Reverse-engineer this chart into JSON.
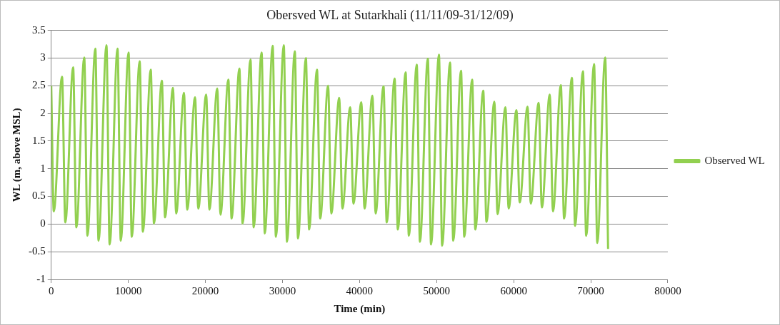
{
  "chart_data": {
    "type": "line",
    "title": "Obersved WL at Sutarkhali (11/11/09-31/12/09)",
    "xlabel": "Time (min)",
    "ylabel": "WL (m, above MSL)",
    "xlim": [
      0,
      80000
    ],
    "xticks": [
      0,
      10000,
      20000,
      30000,
      40000,
      50000,
      60000,
      70000,
      80000
    ],
    "ylim": [
      -1,
      3.5
    ],
    "yticks": [
      -1,
      -0.5,
      0,
      0.5,
      1,
      1.5,
      2,
      2.5,
      3,
      3.5
    ],
    "grid": "y",
    "legend": "right",
    "marker": "none",
    "line_style": "solid",
    "series": [
      {
        "name": "Observed WL",
        "color": "#92d050",
        "x": [
          0,
          330,
          1400,
          1830,
          2840,
          3260,
          4280,
          4700,
          5720,
          6140,
          7160,
          7580,
          8600,
          9020,
          10030,
          10450,
          11470,
          11890,
          12910,
          13330,
          14350,
          14770,
          15790,
          16210,
          17220,
          17640,
          18660,
          19080,
          20100,
          20520,
          21540,
          21960,
          22980,
          23400,
          24410,
          24830,
          25850,
          26270,
          27290,
          27710,
          28730,
          29150,
          30170,
          30590,
          31600,
          32020,
          33040,
          33460,
          34480,
          34900,
          35920,
          36340,
          37360,
          37780,
          38790,
          39210,
          40230,
          40650,
          41670,
          42090,
          43110,
          43530,
          44550,
          44970,
          45980,
          46400,
          47420,
          47840,
          48860,
          49280,
          50300,
          50720,
          51740,
          52160,
          53170,
          53590,
          54610,
          55030,
          56050,
          56470,
          57490,
          57910,
          58930,
          59350,
          60360,
          60780,
          61800,
          62220,
          63240,
          63660,
          64680,
          65100,
          66120,
          66540,
          67550,
          67970,
          68990,
          69410,
          70430,
          70850,
          71870,
          72250
        ],
        "values": [
          2.5,
          0.23,
          2.66,
          0.03,
          2.83,
          -0.06,
          3.01,
          -0.21,
          3.17,
          -0.3,
          3.23,
          -0.37,
          3.17,
          -0.3,
          3.1,
          -0.23,
          2.94,
          -0.14,
          2.79,
          0.01,
          2.59,
          0.12,
          2.46,
          0.19,
          2.37,
          0.26,
          2.29,
          0.28,
          2.34,
          0.26,
          2.45,
          0.17,
          2.61,
          0.1,
          2.81,
          0.01,
          2.97,
          -0.06,
          3.1,
          -0.17,
          3.22,
          -0.23,
          3.23,
          -0.32,
          3.12,
          -0.26,
          3.0,
          -0.1,
          2.79,
          0.1,
          2.5,
          0.19,
          2.28,
          0.28,
          2.11,
          0.37,
          2.2,
          0.28,
          2.32,
          0.19,
          2.49,
          0.03,
          2.63,
          -0.1,
          2.74,
          -0.21,
          2.88,
          -0.32,
          2.99,
          -0.37,
          3.06,
          -0.39,
          2.92,
          -0.3,
          2.77,
          -0.23,
          2.61,
          -0.1,
          2.41,
          0.04,
          2.21,
          0.18,
          2.11,
          0.28,
          2.06,
          0.39,
          2.12,
          0.37,
          2.19,
          0.3,
          2.34,
          0.23,
          2.51,
          0.1,
          2.64,
          -0.03,
          2.76,
          -0.21,
          2.89,
          -0.34,
          3.01,
          -0.45
        ]
      }
    ]
  }
}
